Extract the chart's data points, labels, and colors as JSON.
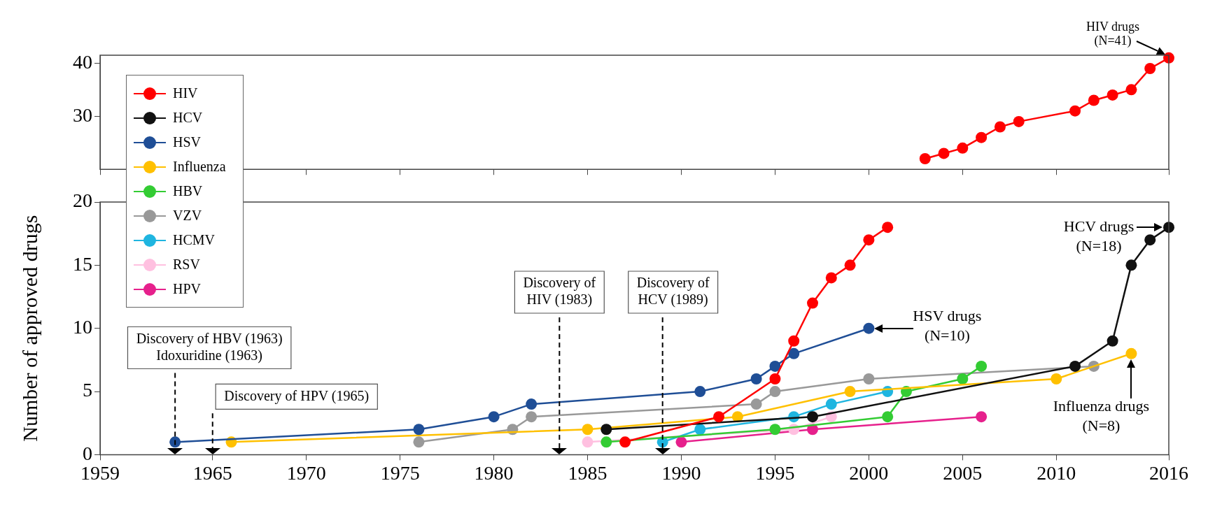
{
  "chart_data": [
    {
      "type": "line",
      "xlim": [
        1959,
        2016
      ],
      "ylim": [
        20,
        41.5
      ],
      "xticks": [
        1959,
        1965,
        1970,
        1975,
        1980,
        1985,
        1990,
        1995,
        2000,
        2005,
        2010,
        2016
      ],
      "yticks": [
        30,
        40
      ],
      "tick_labels": "y",
      "marker": "circle",
      "series": [
        {
          "color": "#ff0000",
          "x": [
            2003,
            2004,
            2005,
            2006,
            2007,
            2008,
            2011,
            2012,
            2013,
            2014,
            2015,
            2016
          ],
          "values": [
            22,
            23,
            24,
            26,
            28,
            29,
            31,
            33,
            34,
            35,
            39,
            41
          ]
        }
      ],
      "annotations": [
        {
          "text": "HIV drugs\n(N=41)",
          "x": 2016,
          "y": 41
        }
      ]
    },
    {
      "type": "line",
      "ylabel": "Number of approved drugs",
      "xlim": [
        1959,
        2016
      ],
      "ylim": [
        0,
        20
      ],
      "xticks": [
        1959,
        1965,
        1970,
        1975,
        1980,
        1985,
        1990,
        1995,
        2000,
        2005,
        2010,
        2016
      ],
      "yticks": [
        0,
        5,
        10,
        15,
        20
      ],
      "marker": "circle",
      "legend": "top left",
      "series": [
        {
          "name": "HIV",
          "color": "#ff0000",
          "x": [
            1987,
            1992,
            1995,
            1996,
            1997,
            1998,
            1999,
            2000,
            2001
          ],
          "values": [
            1,
            3,
            6,
            9,
            12,
            14,
            15,
            17,
            18
          ]
        },
        {
          "name": "HCV",
          "color": "#111111",
          "x": [
            1986,
            1997,
            2011,
            2013,
            2014,
            2015,
            2016
          ],
          "values": [
            2,
            3,
            7,
            9,
            15,
            17,
            18
          ]
        },
        {
          "name": "HSV",
          "color": "#1f4e96",
          "x": [
            1963,
            1976,
            1980,
            1982,
            1991,
            1994,
            1995,
            1996,
            2000
          ],
          "values": [
            1,
            2,
            3,
            4,
            5,
            6,
            7,
            8,
            10
          ]
        },
        {
          "name": "Influenza",
          "color": "#ffc000",
          "x": [
            1966,
            1985,
            1993,
            1999,
            2010,
            2014
          ],
          "values": [
            1,
            2,
            3,
            5,
            6,
            8
          ]
        },
        {
          "name": "HBV",
          "color": "#33cc33",
          "x": [
            1986,
            1995,
            2001,
            2002,
            2005,
            2006
          ],
          "values": [
            1,
            2,
            3,
            5,
            6,
            7
          ]
        },
        {
          "name": "VZV",
          "color": "#999999",
          "x": [
            1976,
            1981,
            1982,
            1994,
            1995,
            2000,
            2012
          ],
          "values": [
            1,
            2,
            3,
            4,
            5,
            6,
            7
          ]
        },
        {
          "name": "HCMV",
          "color": "#1fb5e0",
          "x": [
            1989,
            1991,
            1996,
            1998,
            2001
          ],
          "values": [
            1,
            2,
            3,
            4,
            5
          ]
        },
        {
          "name": "RSV",
          "color": "#ffc0e0",
          "x": [
            1985,
            1996,
            1998
          ],
          "values": [
            1,
            2,
            3
          ]
        },
        {
          "name": "HPV",
          "color": "#e6208c",
          "x": [
            1990,
            1997,
            2006
          ],
          "values": [
            1,
            2,
            3
          ]
        }
      ],
      "ref_lines": [
        {
          "axis": "x",
          "value": 1963,
          "label": "Discovery of HBV (1963)\nIdoxuridine (1963)",
          "line_style": "dashed"
        },
        {
          "axis": "x",
          "value": 1965,
          "label": "Discovery of HPV (1965)",
          "line_style": "dashed"
        },
        {
          "axis": "x",
          "value": 1983.5,
          "label": "Discovery of\nHIV (1983)",
          "line_style": "dashed"
        },
        {
          "axis": "x",
          "value": 1989,
          "label": "Discovery of\nHCV (1989)",
          "line_style": "dashed"
        }
      ],
      "annotations": [
        {
          "text": "HSV drugs\n(N=10)",
          "x": 2000,
          "y": 10
        },
        {
          "text": "HCV drugs\n(N=18)",
          "x": 2016,
          "y": 18
        },
        {
          "text": "Influenza drugs\n(N=8)",
          "x": 2014,
          "y": 8
        }
      ]
    }
  ]
}
